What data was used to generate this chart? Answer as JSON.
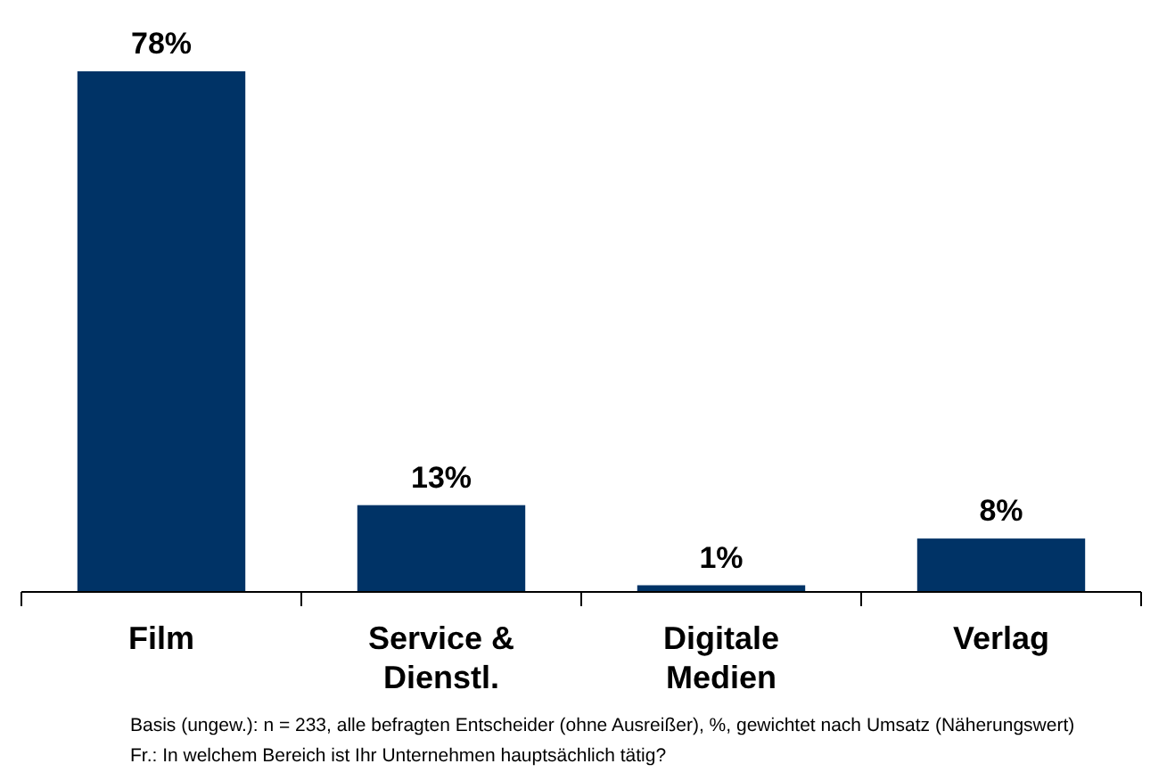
{
  "chart_data": {
    "type": "bar",
    "categories": [
      "Film",
      "Service & Dienstl.",
      "Digitale Medien",
      "Verlag"
    ],
    "values": [
      78,
      13,
      1,
      8
    ],
    "value_labels": [
      "78%",
      "13%",
      "1%",
      "8%"
    ],
    "color": "#003366",
    "annotations": [
      "Basis (ungew.): n = 233, alle befragten Entscheider (ohne Ausreißer), %, gewichtet nach Umsatz (Näherungswert)",
      "Fr.: In welchem Bereich ist Ihr Unternehmen hauptsächlich tätig?"
    ]
  }
}
